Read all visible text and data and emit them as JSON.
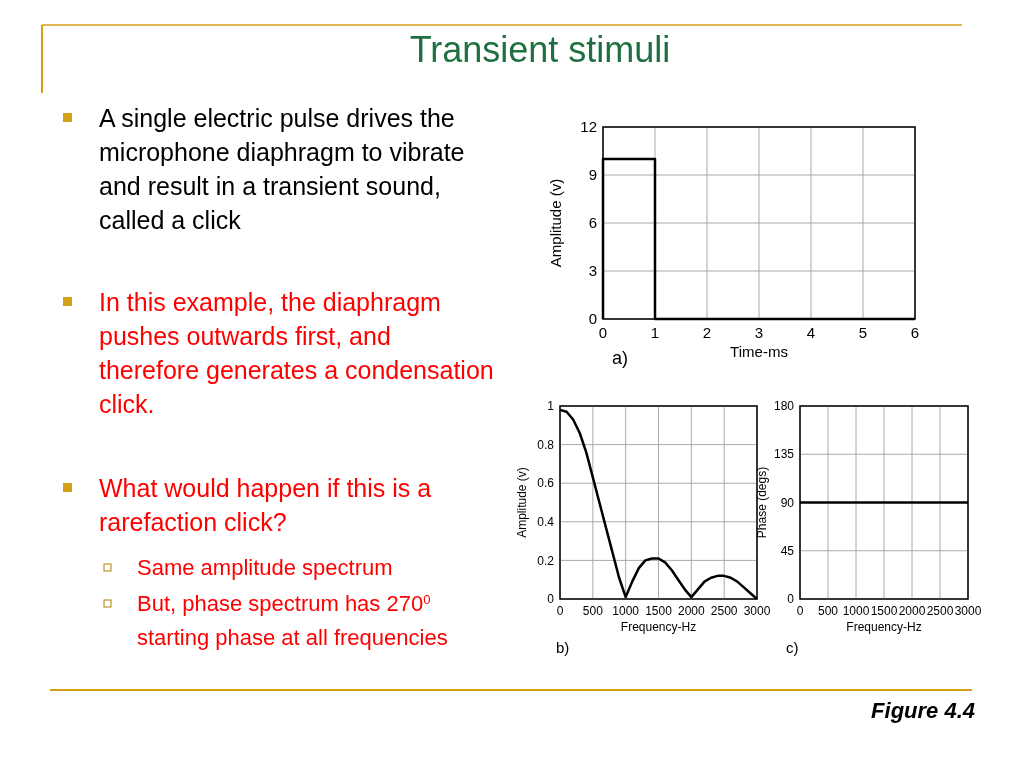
{
  "chart_data": [
    {
      "type": "other",
      "title": "Transient stimuli",
      "annotations": [
        "A single electric pulse drives the microphone diaphragm to vibrate and result in a transient sound, called a click",
        "In this example, the diaphragm pushes outwards first, and therefore generates a condensation click.",
        "What would happen if this is a rarefaction click?",
        "Same amplitude spectrum",
        "But, phase spectrum has 270$^{0}$ starting phase at all frequencies",
        "Figure 4.4"
      ]
    },
    {
      "type": "line",
      "xlabel": "Time-ms",
      "ylabel": "Amplitude (v)",
      "annotations": [
        "a)"
      ],
      "xlim": [
        0,
        6
      ],
      "xticks": [
        0,
        1,
        2,
        3,
        4,
        5,
        6
      ],
      "ylim": [
        0,
        12
      ],
      "yticks": [
        0,
        3,
        6,
        9,
        12
      ],
      "grid": true,
      "series": [
        {
          "color": "#000000",
          "x": [
            0,
            0,
            1,
            1,
            6
          ],
          "values": [
            0,
            10,
            10,
            0,
            0
          ]
        }
      ]
    },
    {
      "type": "line",
      "xlabel": "Frequency-Hz",
      "ylabel": "Amplitude (v)",
      "annotations": [
        "b)"
      ],
      "xlim": [
        0,
        3000
      ],
      "xticks": [
        0,
        500,
        1000,
        1500,
        2000,
        2500,
        3000
      ],
      "ylim": [
        0,
        1
      ],
      "yticks": [
        0,
        0.2,
        0.4,
        0.6,
        0.8,
        1
      ],
      "grid": true,
      "series": [
        {
          "color": "#000000",
          "x": [
            0,
            100,
            200,
            300,
            400,
            500,
            600,
            700,
            800,
            900,
            1000,
            1100,
            1200,
            1300,
            1400,
            1500,
            1600,
            1700,
            1800,
            1900,
            2000,
            2100,
            2200,
            2300,
            2400,
            2500,
            2600,
            2700,
            2800,
            2900,
            3000
          ],
          "values": [
            0.98,
            0.97,
            0.93,
            0.86,
            0.76,
            0.63,
            0.5,
            0.37,
            0.24,
            0.11,
            0.01,
            0.09,
            0.16,
            0.2,
            0.21,
            0.21,
            0.19,
            0.15,
            0.1,
            0.05,
            0.01,
            0.05,
            0.09,
            0.11,
            0.12,
            0.12,
            0.11,
            0.09,
            0.06,
            0.03,
            0
          ]
        }
      ]
    },
    {
      "type": "line",
      "xlabel": "Frequency-Hz",
      "ylabel": "Phase (degs)",
      "annotations": [
        "c)"
      ],
      "xlim": [
        0,
        3000
      ],
      "xticks": [
        0,
        500,
        1000,
        1500,
        2000,
        2500,
        3000
      ],
      "ylim": [
        0,
        180
      ],
      "yticks": [
        0,
        45,
        90,
        135,
        180
      ],
      "grid": true,
      "series": [
        {
          "color": "#000000",
          "x": [
            0,
            3000
          ],
          "values": [
            90,
            90
          ]
        }
      ]
    }
  ]
}
